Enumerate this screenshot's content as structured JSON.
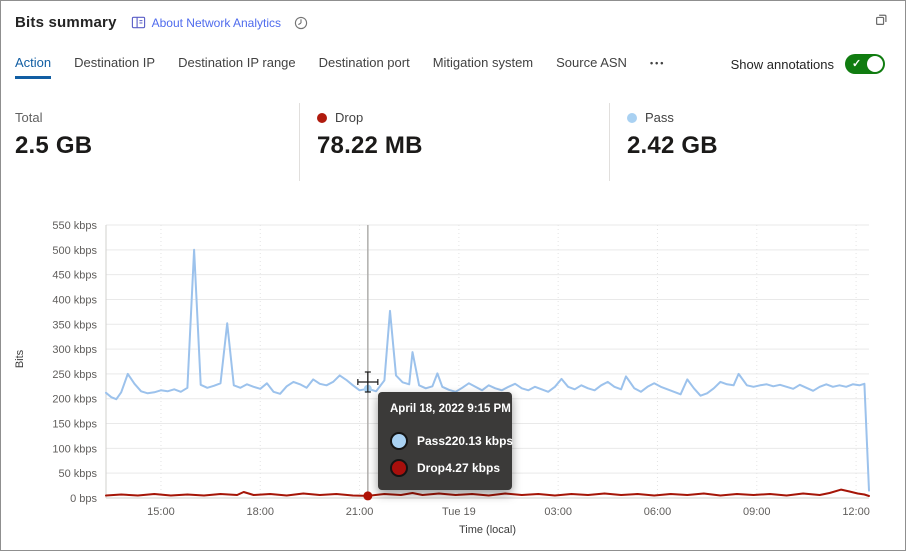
{
  "window": {
    "title": "Bits summary",
    "about_link": "About Network Analytics"
  },
  "tabs": {
    "items": [
      "Action",
      "Destination IP",
      "Destination IP range",
      "Destination port",
      "Mitigation system",
      "Source ASN"
    ],
    "active": "Action",
    "more_label": "•••"
  },
  "toggle": {
    "label": "Show annotations",
    "state": "on",
    "color": "#107c10"
  },
  "stats": [
    {
      "label": "Total",
      "value": "2.5 GB"
    },
    {
      "label": "Drop",
      "value": "78.22 MB",
      "dot_color": "#b01b0e"
    },
    {
      "label": "Pass",
      "value": "2.42 GB",
      "dot_color": "#a9d1f2"
    }
  ],
  "chart_data": {
    "type": "line",
    "title": "",
    "xlabel": "Time (local)",
    "ylabel": "Bits",
    "grid": "on",
    "axis_range": {
      "tmin": 13.34,
      "tmax": 36.39,
      "ymax": 550
    },
    "yticks": [
      [
        0,
        "0 bps"
      ],
      [
        50,
        "50 kbps"
      ],
      [
        100,
        "100 kbps"
      ],
      [
        150,
        "150 kbps"
      ],
      [
        200,
        "200 kbps"
      ],
      [
        250,
        "250 kbps"
      ],
      [
        300,
        "300 kbps"
      ],
      [
        350,
        "350 kbps"
      ],
      [
        400,
        "400 kbps"
      ],
      [
        450,
        "450 kbps"
      ],
      [
        500,
        "500 kbps"
      ],
      [
        550,
        "550 kbps"
      ]
    ],
    "xticks": [
      [
        15,
        "15:00"
      ],
      [
        18,
        "18:00"
      ],
      [
        21,
        "21:00"
      ],
      [
        24,
        "Tue 19"
      ],
      [
        27,
        "03:00"
      ],
      [
        30,
        "06:00"
      ],
      [
        33,
        "09:00"
      ],
      [
        36,
        "12:00"
      ]
    ],
    "series": [
      {
        "name": "Pass",
        "color": "#9cc2ec",
        "unit": "kbps",
        "points": [
          [
            13.34,
            212
          ],
          [
            13.5,
            203
          ],
          [
            13.65,
            199
          ],
          [
            13.8,
            213
          ],
          [
            14.0,
            250
          ],
          [
            14.2,
            230
          ],
          [
            14.4,
            215
          ],
          [
            14.6,
            211
          ],
          [
            14.8,
            213
          ],
          [
            15.0,
            217
          ],
          [
            15.2,
            215
          ],
          [
            15.4,
            219
          ],
          [
            15.6,
            214
          ],
          [
            15.8,
            222
          ],
          [
            16.0,
            500
          ],
          [
            16.2,
            228
          ],
          [
            16.4,
            222
          ],
          [
            16.6,
            226
          ],
          [
            16.8,
            231
          ],
          [
            17.0,
            352
          ],
          [
            17.2,
            227
          ],
          [
            17.4,
            222
          ],
          [
            17.6,
            229
          ],
          [
            17.8,
            224
          ],
          [
            18.0,
            220
          ],
          [
            18.2,
            231
          ],
          [
            18.4,
            214
          ],
          [
            18.6,
            210
          ],
          [
            18.8,
            225
          ],
          [
            19.0,
            234
          ],
          [
            19.2,
            229
          ],
          [
            19.4,
            222
          ],
          [
            19.6,
            239
          ],
          [
            19.8,
            230
          ],
          [
            20.0,
            227
          ],
          [
            20.2,
            234
          ],
          [
            20.4,
            247
          ],
          [
            20.6,
            238
          ],
          [
            20.8,
            227
          ],
          [
            21.0,
            217
          ],
          [
            21.25,
            220.13
          ],
          [
            21.5,
            215
          ],
          [
            21.75,
            237
          ],
          [
            21.92,
            377
          ],
          [
            22.1,
            247
          ],
          [
            22.3,
            233
          ],
          [
            22.5,
            229
          ],
          [
            22.6,
            294
          ],
          [
            22.8,
            227
          ],
          [
            23.0,
            221
          ],
          [
            23.2,
            225
          ],
          [
            23.35,
            251
          ],
          [
            23.5,
            224
          ],
          [
            23.7,
            218
          ],
          [
            23.9,
            214
          ],
          [
            24.1,
            222
          ],
          [
            24.3,
            231
          ],
          [
            24.5,
            224
          ],
          [
            24.7,
            217
          ],
          [
            24.9,
            227
          ],
          [
            25.1,
            221
          ],
          [
            25.3,
            217
          ],
          [
            25.5,
            224
          ],
          [
            25.7,
            230
          ],
          [
            25.9,
            221
          ],
          [
            26.1,
            217
          ],
          [
            26.3,
            224
          ],
          [
            26.5,
            219
          ],
          [
            26.7,
            214
          ],
          [
            26.9,
            224
          ],
          [
            27.1,
            240
          ],
          [
            27.3,
            224
          ],
          [
            27.5,
            219
          ],
          [
            27.7,
            227
          ],
          [
            27.9,
            221
          ],
          [
            28.1,
            217
          ],
          [
            28.3,
            227
          ],
          [
            28.5,
            234
          ],
          [
            28.7,
            224
          ],
          [
            28.9,
            219
          ],
          [
            29.05,
            245
          ],
          [
            29.3,
            221
          ],
          [
            29.5,
            214
          ],
          [
            29.7,
            224
          ],
          [
            29.9,
            231
          ],
          [
            30.1,
            224
          ],
          [
            30.3,
            219
          ],
          [
            30.5,
            214
          ],
          [
            30.7,
            209
          ],
          [
            30.9,
            239
          ],
          [
            31.1,
            221
          ],
          [
            31.3,
            206
          ],
          [
            31.5,
            211
          ],
          [
            31.7,
            221
          ],
          [
            31.9,
            234
          ],
          [
            32.1,
            229
          ],
          [
            32.3,
            227
          ],
          [
            32.45,
            250
          ],
          [
            32.7,
            227
          ],
          [
            32.9,
            224
          ],
          [
            33.1,
            227
          ],
          [
            33.3,
            229
          ],
          [
            33.5,
            225
          ],
          [
            33.7,
            228
          ],
          [
            33.9,
            224
          ],
          [
            34.1,
            220
          ],
          [
            34.3,
            228
          ],
          [
            34.5,
            222
          ],
          [
            34.7,
            216
          ],
          [
            34.9,
            224
          ],
          [
            35.1,
            229
          ],
          [
            35.3,
            224
          ],
          [
            35.5,
            227
          ],
          [
            35.7,
            224
          ],
          [
            35.9,
            229
          ],
          [
            36.1,
            227
          ],
          [
            36.25,
            230
          ],
          [
            36.39,
            15
          ]
        ]
      },
      {
        "name": "Drop",
        "color": "#a51507",
        "unit": "kbps",
        "points": [
          [
            13.34,
            5
          ],
          [
            13.8,
            7
          ],
          [
            14.3,
            5
          ],
          [
            14.8,
            8
          ],
          [
            15.3,
            5
          ],
          [
            15.8,
            7
          ],
          [
            16.3,
            5
          ],
          [
            16.8,
            8
          ],
          [
            17.3,
            6
          ],
          [
            17.5,
            12
          ],
          [
            17.8,
            6
          ],
          [
            18.3,
            8
          ],
          [
            18.8,
            5
          ],
          [
            19.3,
            9
          ],
          [
            19.8,
            6
          ],
          [
            20.3,
            8
          ],
          [
            20.8,
            5
          ],
          [
            21.25,
            4.27
          ],
          [
            21.75,
            8
          ],
          [
            22.25,
            6
          ],
          [
            22.6,
            10
          ],
          [
            22.9,
            6
          ],
          [
            23.4,
            9
          ],
          [
            23.9,
            6
          ],
          [
            24.4,
            8
          ],
          [
            24.9,
            5
          ],
          [
            25.4,
            9
          ],
          [
            25.9,
            6
          ],
          [
            26.4,
            8
          ],
          [
            26.9,
            5
          ],
          [
            27.4,
            8
          ],
          [
            27.9,
            6
          ],
          [
            28.4,
            9
          ],
          [
            28.9,
            6
          ],
          [
            29.4,
            8
          ],
          [
            29.9,
            5
          ],
          [
            30.4,
            8
          ],
          [
            30.9,
            6
          ],
          [
            31.4,
            9
          ],
          [
            31.9,
            5
          ],
          [
            32.4,
            8
          ],
          [
            32.9,
            6
          ],
          [
            33.4,
            8
          ],
          [
            33.9,
            5
          ],
          [
            34.4,
            9
          ],
          [
            34.9,
            6
          ],
          [
            35.2,
            10
          ],
          [
            35.55,
            17
          ],
          [
            35.8,
            13
          ],
          [
            36.05,
            9
          ],
          [
            36.25,
            7
          ],
          [
            36.39,
            4
          ]
        ]
      }
    ],
    "tooltip": {
      "title": "April 18, 2022 9:15 PM",
      "t": 21.25,
      "rows": [
        {
          "name": "Pass",
          "value": "220.13 kbps",
          "value_num": 220.13,
          "color": "#a9d1f2"
        },
        {
          "name": "Drop",
          "value": "4.27 kbps",
          "value_num": 4.27,
          "color": "#a80f0c"
        }
      ]
    }
  }
}
